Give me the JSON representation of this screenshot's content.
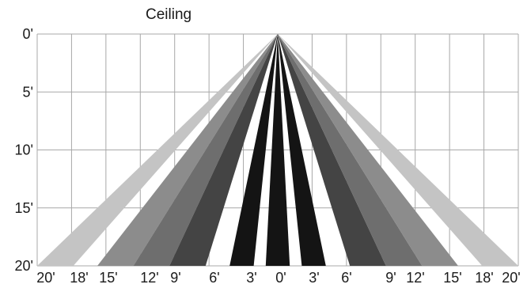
{
  "title": "Ceiling",
  "y_labels": [
    "0'",
    "5'",
    "10'",
    "15'",
    "20'"
  ],
  "x_labels": [
    "20'",
    "18'",
    "15'",
    "12'",
    "9'",
    "6'",
    "3'",
    "0'",
    "3'",
    "6'",
    "9'",
    "12'",
    "15'",
    "18'",
    "20'"
  ],
  "colors": {
    "background": "#ffffff",
    "grid": "#a8a8a8",
    "text": "#1a1a1a",
    "beam_black": "#141414",
    "beam_dark_gray": "#444444",
    "beam_mid_gray": "#6e6e6e",
    "beam_gray": "#8c8c8c",
    "beam_light_gray": "#c4c4c4"
  },
  "beams": [
    {
      "left": -20,
      "right": -17,
      "shade": "beam_light_gray"
    },
    {
      "left": -15,
      "right": -12,
      "shade": "beam_gray"
    },
    {
      "left": -12,
      "right": -9,
      "shade": "beam_mid_gray"
    },
    {
      "left": -9,
      "right": -6,
      "shade": "beam_dark_gray"
    },
    {
      "left": -4,
      "right": -2,
      "shade": "beam_black"
    },
    {
      "left": -1,
      "right": 1,
      "shade": "beam_black"
    },
    {
      "left": 2,
      "right": 4,
      "shade": "beam_black"
    },
    {
      "left": 6,
      "right": 9,
      "shade": "beam_dark_gray"
    },
    {
      "left": 9,
      "right": 12,
      "shade": "beam_mid_gray"
    },
    {
      "left": 12,
      "right": 15,
      "shade": "beam_gray"
    },
    {
      "left": 17,
      "right": 20,
      "shade": "beam_light_gray"
    }
  ]
}
